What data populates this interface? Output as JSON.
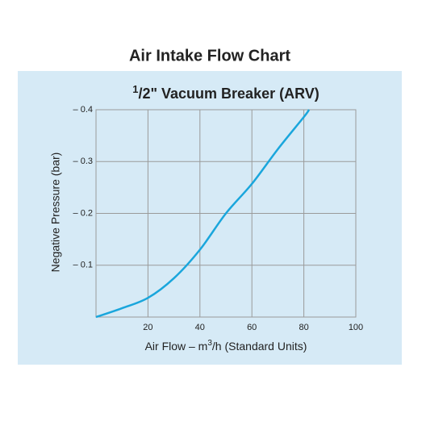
{
  "chart_data": {
    "type": "line",
    "title": "Air Intake Flow Chart",
    "subtitle": [
      "1",
      "/2\" Vacuum Breaker (ARV)"
    ],
    "xlabel": [
      "Air Flow  – m",
      "3",
      "/h (Standard Units)"
    ],
    "ylabel": "Negative Pressure (bar)",
    "x": [
      0,
      10,
      20,
      30,
      40,
      50,
      60,
      70,
      80,
      82
    ],
    "series": [
      {
        "name": "1/2\" Vacuum Breaker (ARV)",
        "color": "#1aa6dc",
        "values": [
          0,
          -0.017,
          -0.037,
          -0.075,
          -0.13,
          -0.2,
          -0.257,
          -0.324,
          -0.386,
          -0.4
        ]
      }
    ],
    "xlim": [
      0,
      100
    ],
    "xticks": [
      20,
      40,
      60,
      80,
      100
    ],
    "ylim": [
      0,
      -0.4
    ],
    "yticks": [
      {
        "value": -0.1,
        "label": "– 0.1"
      },
      {
        "value": -0.2,
        "label": "– 0.2"
      },
      {
        "value": -0.3,
        "label": "– 0.3"
      },
      {
        "value": -0.4,
        "label": "– 0.4"
      }
    ],
    "grid": true
  }
}
